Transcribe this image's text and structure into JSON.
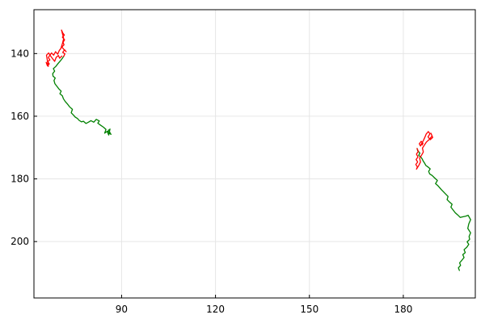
{
  "chart_data": {
    "type": "line",
    "title": "",
    "xlabel": "",
    "ylabel": "",
    "xlim": [
      62,
      203
    ],
    "ylim": [
      218,
      126
    ],
    "y_inverted": true,
    "grid": true,
    "legend": "none",
    "x_ticks": [
      90,
      120,
      150,
      180
    ],
    "y_ticks": [
      140,
      160,
      180,
      200
    ],
    "colors": {
      "green": "#008000",
      "red": "#ff0000"
    },
    "series": [
      {
        "color": "#008000",
        "x": [
          86.2,
          85.8,
          86.6,
          85.5,
          86.3,
          85.9,
          85.4,
          84.6,
          85.0,
          84.2,
          83.2,
          82.4,
          82.9,
          81.9,
          81.1,
          80.2,
          79.4,
          78.6,
          77.8,
          77.2,
          76.4,
          75.9,
          75.2,
          74.6,
          73.9,
          74.3,
          73.4,
          72.8,
          72.0,
          71.4,
          71.1,
          70.3,
          70.7,
          69.9,
          69.3,
          68.7,
          68.4,
          68.8,
          68.1,
          68.0,
          68.6,
          68.2,
          69.0,
          69.7,
          70.4,
          71.0,
          71.5
        ],
        "y": [
          165.2,
          164.4,
          165.8,
          165.0,
          164.1,
          166.0,
          164.8,
          165.4,
          164.2,
          163.5,
          162.8,
          162.2,
          161.5,
          161.0,
          161.9,
          161.4,
          161.9,
          162.3,
          161.6,
          161.8,
          161.3,
          160.7,
          160.3,
          159.6,
          158.9,
          157.8,
          157.0,
          156.2,
          155.3,
          154.4,
          153.5,
          152.8,
          152.0,
          151.2,
          150.4,
          149.6,
          148.6,
          147.8,
          147.2,
          146.4,
          145.6,
          144.8,
          144.1,
          143.2,
          142.4,
          141.6,
          140.9
        ]
      },
      {
        "color": "#ff0000",
        "x": [
          71.5,
          71.9,
          71.2,
          71.8,
          72.3,
          71.5,
          70.9,
          71.6,
          71.3,
          71.8,
          71.1,
          71.7,
          71.2,
          70.8,
          71.5,
          71.1,
          70.6,
          70.1,
          69.6,
          68.9,
          68.3,
          67.6,
          67.0,
          66.6,
          67.1,
          66.4,
          66.9,
          66.3,
          65.9,
          66.6,
          66.0,
          66.7,
          67.4,
          68.0,
          68.6,
          69.1,
          69.8,
          70.2,
          70.9
        ],
        "y": [
          140.9,
          140.1,
          139.6,
          138.8,
          139.4,
          138.6,
          137.9,
          137.2,
          136.4,
          135.6,
          134.8,
          134.1,
          133.4,
          132.5,
          135.2,
          136.8,
          138.4,
          139.0,
          140.2,
          139.4,
          140.5,
          139.8,
          140.6,
          141.3,
          142.0,
          142.6,
          143.3,
          143.9,
          142.8,
          144.1,
          140.5,
          139.8,
          140.9,
          141.7,
          142.5,
          141.2,
          140.6,
          141.5,
          140.8
        ]
      },
      {
        "color": "#008000",
        "x": [
          197.9,
          197.6,
          198.3,
          198.0,
          198.7,
          199.4,
          199.0,
          199.8,
          199.4,
          200.3,
          200.9,
          200.4,
          201.2,
          201.0,
          201.5,
          200.6,
          200.9,
          201.5,
          200.7,
          199.9,
          199.0,
          198.2,
          197.4,
          196.6,
          195.9,
          195.2,
          195.6,
          194.8,
          194.0,
          194.3,
          193.5,
          192.9,
          192.2,
          191.6,
          191.0,
          190.3,
          190.9,
          189.9,
          189.2,
          188.4,
          188.1,
          188.6,
          187.9,
          187.2,
          186.8,
          186.3,
          186.0,
          185.6,
          184.9,
          185.3,
          184.6,
          184.4
        ],
        "y": [
          209.2,
          208.4,
          207.6,
          206.8,
          206.0,
          205.1,
          204.2,
          203.5,
          202.6,
          201.8,
          200.9,
          200.1,
          199.3,
          198.4,
          197.2,
          195.8,
          194.4,
          193.0,
          191.6,
          191.9,
          192.1,
          192.3,
          191.5,
          190.8,
          189.9,
          189.0,
          188.1,
          187.4,
          186.6,
          185.6,
          184.8,
          184.2,
          183.5,
          182.8,
          182.1,
          181.5,
          180.5,
          179.6,
          178.9,
          178.4,
          177.6,
          176.8,
          176.2,
          175.7,
          175.0,
          174.2,
          173.6,
          173.0,
          172.5,
          171.8,
          171.0,
          170.3
        ]
      },
      {
        "color": "#ff0000",
        "x": [
          184.4,
          184.8,
          184.2,
          184.7,
          184.1,
          184.6,
          184.0,
          184.5,
          184.2,
          184.9,
          185.5,
          185.2,
          185.9,
          186.4,
          186.1,
          186.8,
          187.4,
          188.1,
          188.7,
          189.2,
          188.8,
          189.4,
          188.6,
          187.9,
          188.5,
          188.0,
          187.3,
          186.8,
          186.4,
          185.9,
          185.5,
          185.1,
          185.7,
          186.3,
          186.0
        ],
        "y": [
          170.3,
          171.2,
          172.1,
          173.0,
          173.8,
          174.6,
          175.4,
          176.2,
          176.9,
          175.8,
          174.6,
          173.4,
          172.3,
          171.4,
          170.2,
          169.1,
          168.2,
          167.6,
          166.9,
          166.3,
          165.4,
          166.8,
          167.5,
          166.6,
          165.6,
          164.9,
          165.7,
          166.9,
          167.8,
          168.6,
          169.5,
          168.8,
          168.0,
          168.6,
          169.2
        ]
      }
    ]
  }
}
